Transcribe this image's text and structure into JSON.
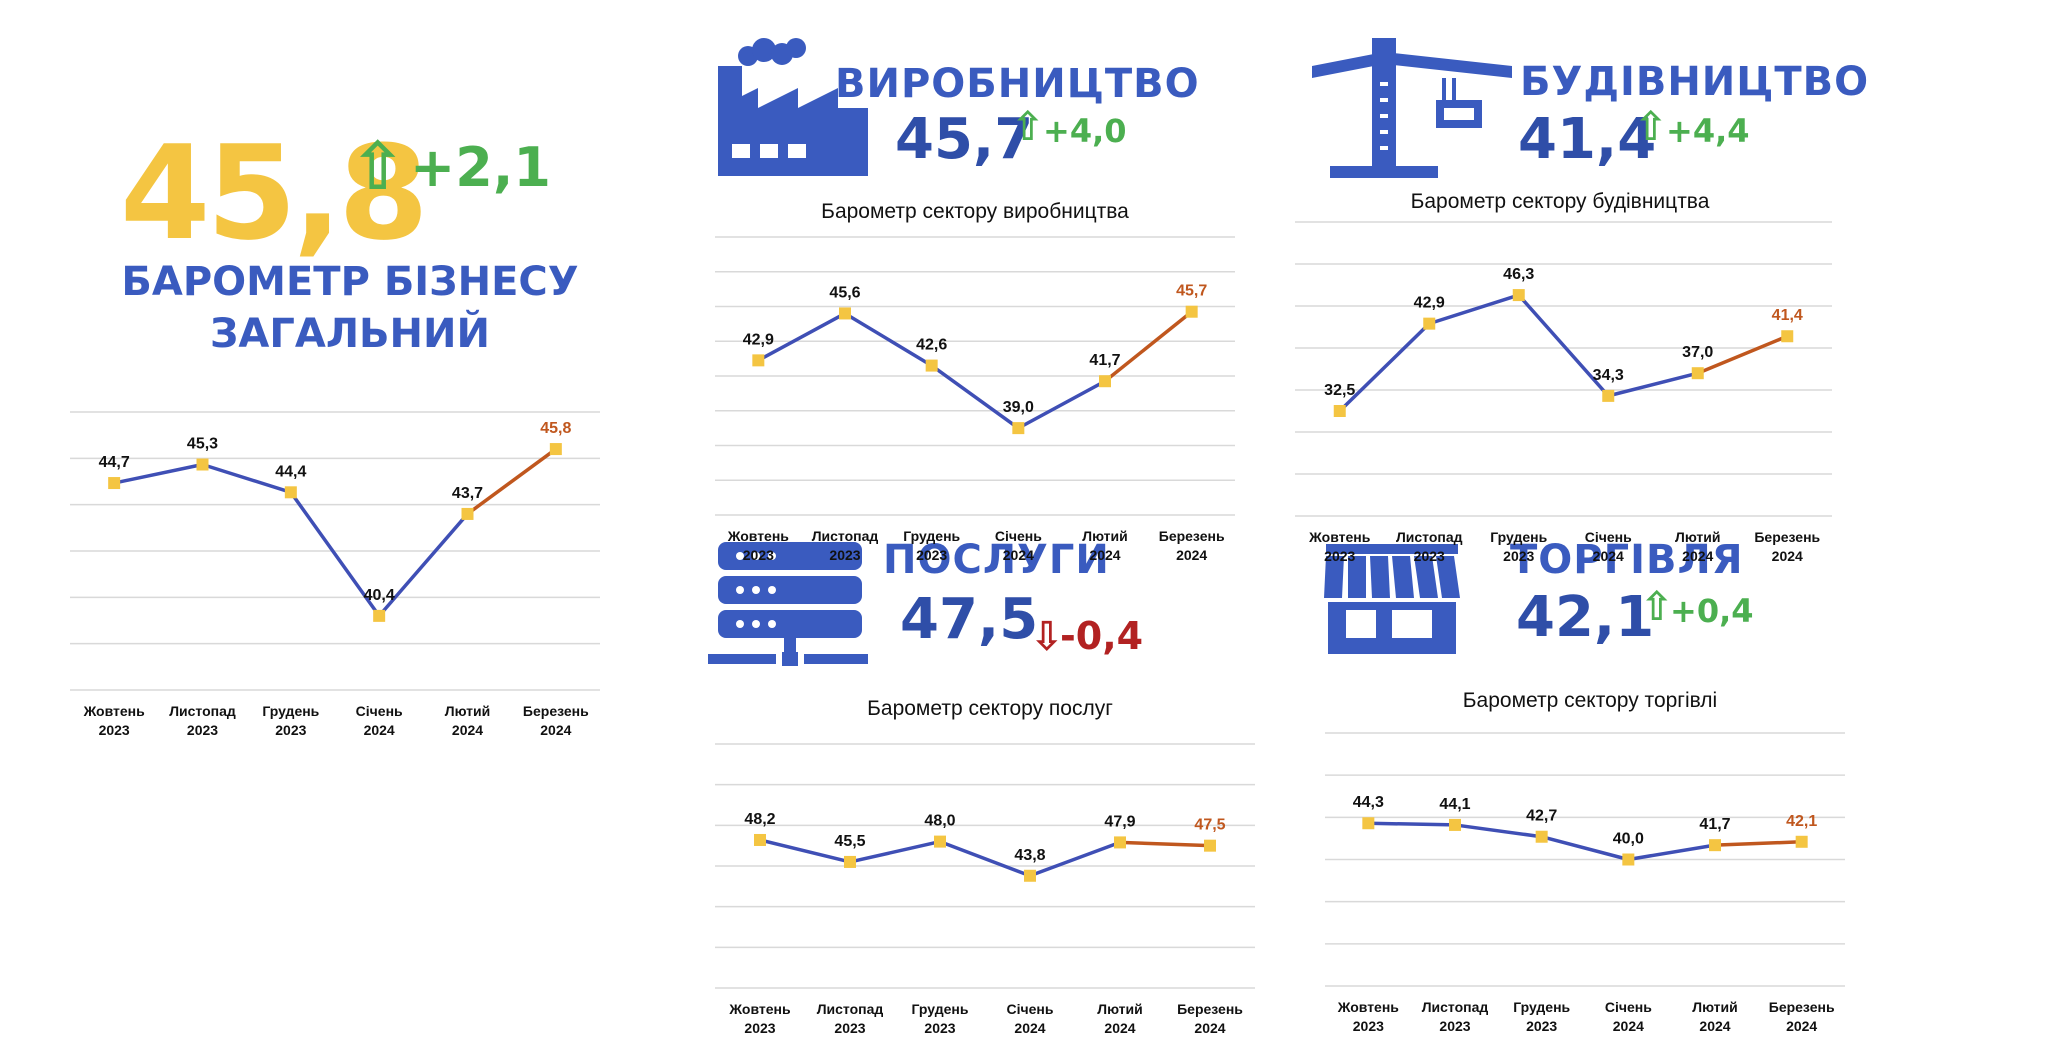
{
  "colors": {
    "line_blue": "#3f4fb5",
    "line_orange": "#c0571e",
    "marker": "#f4c542",
    "grid": "#d9d9d9",
    "brand_blue": "#3a5bbf",
    "gain_green": "#4caf50",
    "loss_red": "#b22222",
    "total_yellow": "#f4c542"
  },
  "overall": {
    "value": "45,8",
    "arrow": "⇧",
    "delta": "+2,1",
    "title_line1": "БАРОМЕТР БІЗНЕСУ",
    "title_line2": "ЗАГАЛЬНИЙ"
  },
  "sectors": {
    "manufacturing": {
      "name": "ВИРОБНИЦТВО",
      "value": "45,7",
      "arrow": "⇧",
      "delta": "+4,0",
      "icon": "factory-icon"
    },
    "construction": {
      "name": "БУДІВНИЦТВО",
      "value": "41,4",
      "arrow": "⇧",
      "delta": "+4,4",
      "icon": "crane-icon"
    },
    "services": {
      "name": "ПОСЛУГИ",
      "value": "47,5",
      "arrow": "⇩",
      "delta": "-0,4",
      "icon": "server-icon"
    },
    "trade": {
      "name": "ТОРГІВЛЯ",
      "value": "42,1",
      "arrow": "⇧",
      "delta": "+0,4",
      "icon": "store-icon"
    }
  },
  "chart_data": [
    {
      "id": "overall",
      "type": "line",
      "title": "",
      "categories": [
        [
          "Жовтень",
          "2023"
        ],
        [
          "Листопад",
          "2023"
        ],
        [
          "Грудень",
          "2023"
        ],
        [
          "Січень",
          "2024"
        ],
        [
          "Лютий",
          "2024"
        ],
        [
          "Березень",
          "2024"
        ]
      ],
      "values": [
        44.7,
        45.3,
        44.4,
        40.4,
        43.7,
        45.8
      ],
      "labels": [
        "44,7",
        "45,3",
        "44,4",
        "40,4",
        "43,7",
        "45,8"
      ],
      "ylim": [
        38,
        47
      ],
      "gridlines": 6,
      "highlight_last": true
    },
    {
      "id": "manufacturing",
      "type": "line",
      "title": "Барометр сектору виробництва",
      "categories": [
        [
          "Жовтень",
          "2023"
        ],
        [
          "Листопад",
          "2023"
        ],
        [
          "Грудень",
          "2023"
        ],
        [
          "Січень",
          "2024"
        ],
        [
          "Лютий",
          "2024"
        ],
        [
          "Березень",
          "2024"
        ]
      ],
      "values": [
        42.9,
        45.6,
        42.6,
        39.0,
        41.7,
        45.7
      ],
      "labels": [
        "42,9",
        "45,6",
        "42,6",
        "39,0",
        "41,7",
        "45,7"
      ],
      "ylim": [
        34,
        50
      ],
      "gridlines": 8,
      "highlight_last": true
    },
    {
      "id": "construction",
      "type": "line",
      "title": "Барометр сектору будівництва",
      "categories": [
        [
          "Жовтень",
          "2023"
        ],
        [
          "Листопад",
          "2023"
        ],
        [
          "Грудень",
          "2023"
        ],
        [
          "Січень",
          "2024"
        ],
        [
          "Лютий",
          "2024"
        ],
        [
          "Березень",
          "2024"
        ]
      ],
      "values": [
        32.5,
        42.9,
        46.3,
        34.3,
        37.0,
        41.4
      ],
      "labels": [
        "32,5",
        "42,9",
        "46,3",
        "34,3",
        "37,0",
        "41,4"
      ],
      "ylim": [
        20,
        55
      ],
      "gridlines": 7,
      "highlight_last": true
    },
    {
      "id": "services",
      "type": "line",
      "title": "Барометр сектору послуг",
      "categories": [
        [
          "Жовтень",
          "2023"
        ],
        [
          "Листопад",
          "2023"
        ],
        [
          "Грудень",
          "2023"
        ],
        [
          "Січень",
          "2024"
        ],
        [
          "Лютий",
          "2024"
        ],
        [
          "Березень",
          "2024"
        ]
      ],
      "values": [
        48.2,
        45.5,
        48.0,
        43.8,
        47.9,
        47.5
      ],
      "labels": [
        "48,2",
        "45,5",
        "48,0",
        "43,8",
        "47,9",
        "47,5"
      ],
      "ylim": [
        30,
        60
      ],
      "gridlines": 6,
      "highlight_last": true
    },
    {
      "id": "trade",
      "type": "line",
      "title": "Барометр сектору торгівлі",
      "categories": [
        [
          "Жовтень",
          "2023"
        ],
        [
          "Листопад",
          "2023"
        ],
        [
          "Грудень",
          "2023"
        ],
        [
          "Січень",
          "2024"
        ],
        [
          "Лютий",
          "2024"
        ],
        [
          "Березень",
          "2024"
        ]
      ],
      "values": [
        44.3,
        44.1,
        42.7,
        40.0,
        41.7,
        42.1
      ],
      "labels": [
        "44,3",
        "44,1",
        "42,7",
        "40,0",
        "41,7",
        "42,1"
      ],
      "ylim": [
        25,
        55
      ],
      "gridlines": 6,
      "highlight_last": true
    }
  ]
}
